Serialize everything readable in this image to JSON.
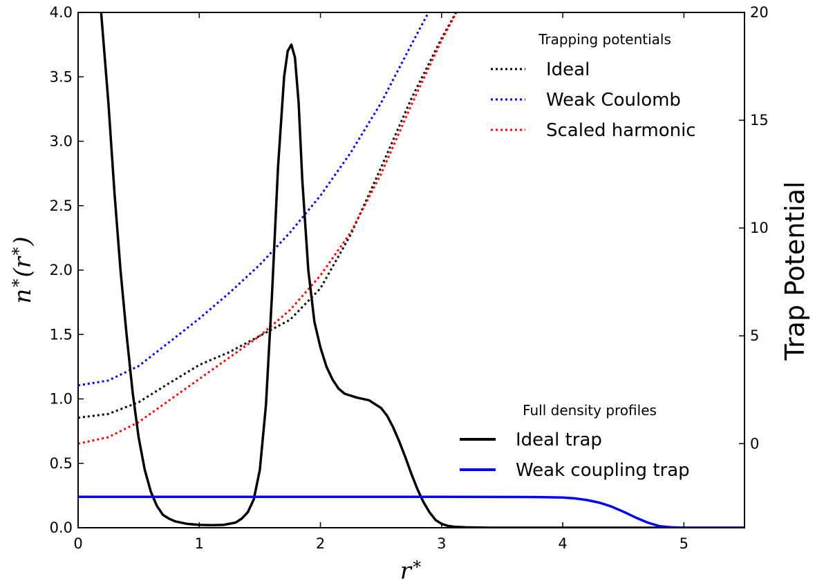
{
  "chart_data": {
    "type": "line",
    "x_label": "r*",
    "y_label_left": "n*(r*)",
    "y_label_right": "Trap Potential",
    "xlim": [
      0,
      5.5
    ],
    "ylim_left": [
      0,
      4.0
    ],
    "ylim_right": [
      -3.9,
      20
    ],
    "x_ticks": [
      "0",
      "1",
      "2",
      "3",
      "4",
      "5"
    ],
    "y_ticks_left": [
      "0.0",
      "0.5",
      "1.0",
      "1.5",
      "2.0",
      "2.5",
      "3.0",
      "3.5",
      "4.0"
    ],
    "y_ticks_right": [
      "0",
      "5",
      "10",
      "15",
      "20"
    ],
    "grid": false,
    "legends": [
      {
        "title": "Trapping potentials",
        "placement": "top-right",
        "entries": [
          {
            "label": "Ideal",
            "color": "#000000",
            "style": "dotted"
          },
          {
            "label": "Weak Coulomb",
            "color": "#0000ff",
            "style": "dotted"
          },
          {
            "label": "Scaled harmonic",
            "color": "#ff0000",
            "style": "dotted"
          }
        ]
      },
      {
        "title": "Full density profiles",
        "placement": "lower-right",
        "entries": [
          {
            "label": "Ideal trap",
            "color": "#000000",
            "style": "solid"
          },
          {
            "label": "Weak coupling trap",
            "color": "#0000ff",
            "style": "solid"
          }
        ]
      }
    ],
    "series": [
      {
        "name": "Ideal",
        "axis": "right",
        "color": "#000000",
        "style": "dotted",
        "x": [
          0,
          0.25,
          0.5,
          0.75,
          1.0,
          1.25,
          1.5,
          1.75,
          2.0,
          2.25,
          2.5,
          2.75,
          3.0,
          3.15
        ],
        "y": [
          1.2,
          1.38,
          1.92,
          2.8,
          3.65,
          4.25,
          5.0,
          5.75,
          7.2,
          9.7,
          12.8,
          16.0,
          18.8,
          20.3
        ]
      },
      {
        "name": "Weak Coulomb",
        "axis": "right",
        "color": "#0000ff",
        "style": "dotted",
        "x": [
          0,
          0.25,
          0.5,
          0.75,
          1.0,
          1.25,
          1.5,
          1.75,
          2.0,
          2.25,
          2.5,
          2.75,
          2.92
        ],
        "y": [
          2.7,
          2.93,
          3.6,
          4.7,
          5.8,
          7.0,
          8.3,
          9.8,
          11.5,
          13.5,
          15.8,
          18.5,
          20.3
        ]
      },
      {
        "name": "Scaled harmonic",
        "axis": "right",
        "color": "#ff0000",
        "style": "dotted",
        "x": [
          0,
          0.25,
          0.5,
          0.75,
          1.0,
          1.25,
          1.5,
          1.75,
          2.0,
          2.25,
          2.5,
          2.75,
          3.0,
          3.15
        ],
        "y": [
          0.0,
          0.3,
          1.0,
          2.0,
          3.0,
          4.0,
          5.0,
          6.2,
          7.8,
          9.8,
          12.5,
          15.7,
          18.7,
          20.3
        ]
      },
      {
        "name": "Ideal trap",
        "axis": "left",
        "color": "#000000",
        "style": "solid",
        "x": [
          0.19,
          0.25,
          0.3,
          0.35,
          0.4,
          0.45,
          0.5,
          0.55,
          0.6,
          0.65,
          0.7,
          0.75,
          0.8,
          0.9,
          1.0,
          1.1,
          1.2,
          1.3,
          1.35,
          1.4,
          1.45,
          1.5,
          1.55,
          1.6,
          1.65,
          1.7,
          1.73,
          1.76,
          1.79,
          1.82,
          1.85,
          1.9,
          1.95,
          2.0,
          2.05,
          2.1,
          2.15,
          2.2,
          2.3,
          2.4,
          2.5,
          2.55,
          2.6,
          2.65,
          2.7,
          2.75,
          2.8,
          2.85,
          2.9,
          2.95,
          3.0,
          3.05,
          3.1,
          3.2,
          3.4,
          3.7,
          4.0,
          4.5,
          5.0,
          5.5
        ],
        "y": [
          4.0,
          3.3,
          2.6,
          2.0,
          1.5,
          1.05,
          0.7,
          0.45,
          0.28,
          0.17,
          0.1,
          0.07,
          0.05,
          0.03,
          0.022,
          0.02,
          0.022,
          0.04,
          0.07,
          0.12,
          0.22,
          0.45,
          0.95,
          1.8,
          2.8,
          3.5,
          3.7,
          3.75,
          3.65,
          3.3,
          2.7,
          2.0,
          1.6,
          1.4,
          1.25,
          1.15,
          1.08,
          1.04,
          1.01,
          0.99,
          0.93,
          0.87,
          0.78,
          0.67,
          0.55,
          0.42,
          0.3,
          0.2,
          0.12,
          0.06,
          0.03,
          0.015,
          0.008,
          0.003,
          0.0,
          0.0,
          0.0,
          0.0,
          0.0,
          0.0
        ]
      },
      {
        "name": "Weak coupling trap",
        "axis": "left",
        "color": "#0000ff",
        "style": "solid",
        "x": [
          0,
          1,
          2,
          3,
          3.8,
          4.0,
          4.1,
          4.2,
          4.3,
          4.4,
          4.5,
          4.6,
          4.7,
          4.8,
          4.9,
          5.0,
          5.5
        ],
        "y": [
          0.24,
          0.24,
          0.24,
          0.24,
          0.238,
          0.235,
          0.228,
          0.215,
          0.195,
          0.165,
          0.125,
          0.08,
          0.04,
          0.012,
          0.003,
          0.0,
          0.0
        ]
      }
    ]
  }
}
